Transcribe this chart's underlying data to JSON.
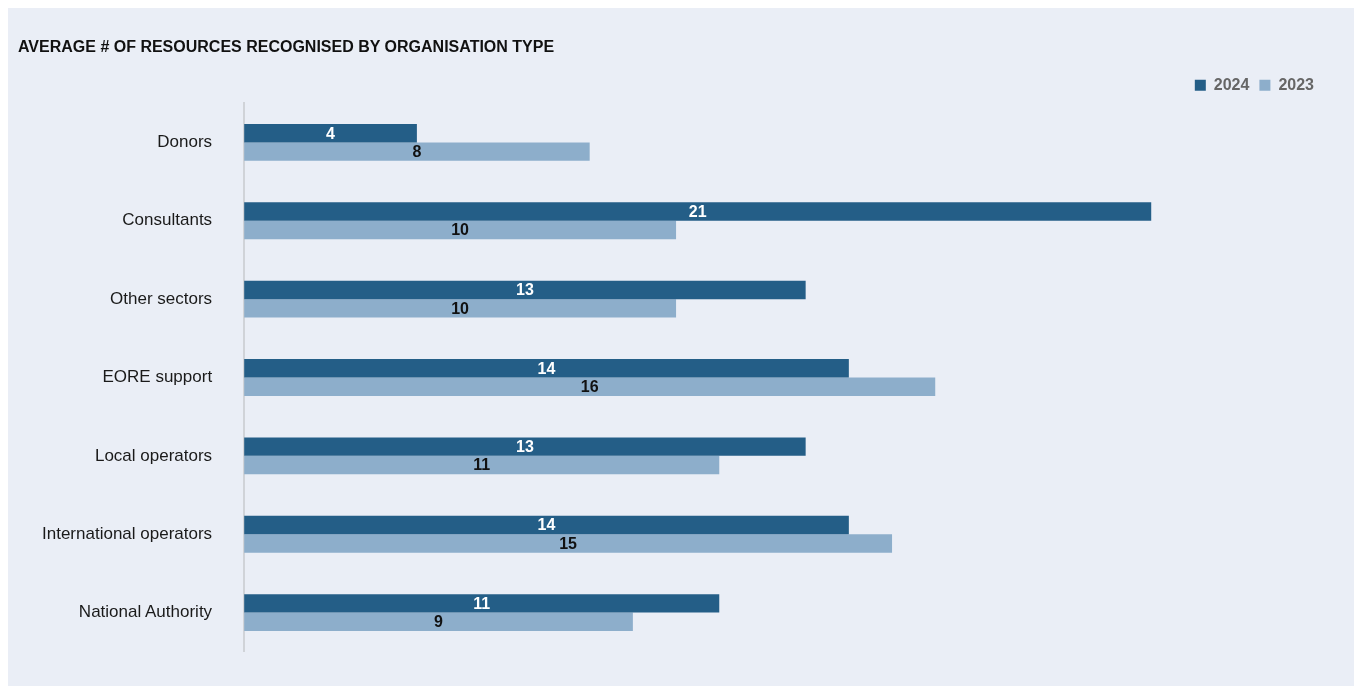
{
  "chart_data": {
    "type": "bar",
    "orientation": "horizontal",
    "title": "AVERAGE # OF RESOURCES RECOGNISED BY ORGANISATION TYPE",
    "categories": [
      "Donors",
      "Consultants",
      "Other sectors",
      "EORE support",
      "Local operators",
      "International operators",
      "National Authority"
    ],
    "series": [
      {
        "name": "2024",
        "color": "#245e87",
        "values": [
          4,
          21,
          13,
          14,
          13,
          14,
          11
        ]
      },
      {
        "name": "2023",
        "color": "#8daecb",
        "values": [
          8,
          10,
          10,
          16,
          11,
          15,
          9
        ]
      }
    ],
    "tick_labels": "y",
    "data_labels": true,
    "legend": "top right",
    "grid": false
  }
}
